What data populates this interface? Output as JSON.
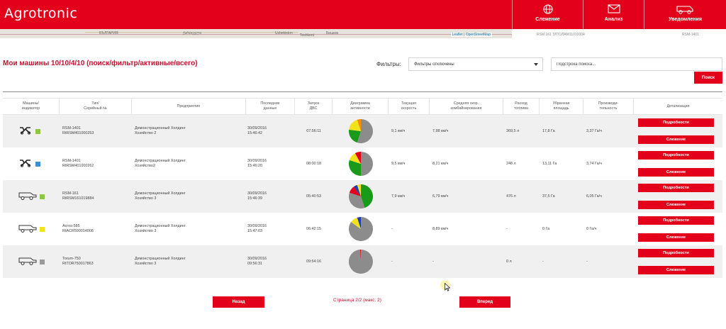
{
  "app": {
    "logo": "Agrotronic",
    "nav": [
      {
        "label": "Слежение",
        "icon": "globe-icon"
      },
      {
        "label": "Анализ",
        "icon": "mail-icon"
      },
      {
        "label": "Уведомления",
        "icon": "combine-icon"
      }
    ]
  },
  "map": {
    "cities": [
      "БЪЛГАРИЯ",
      "ქართველი",
      "Uzbekiston",
      "Toshkent",
      "Бишкек"
    ],
    "attribution_leaflet": "Leaflet",
    "attribution_osm": "OpenStreetMap",
    "right_strip_1": "RSM 161 ЗЛТОЛАМ11010004",
    "right_strip_2": "RSM-1401"
  },
  "page": {
    "title": "Мои машины 10/10/4/10 (поиск/фильтр/активные/всего)",
    "filters_label": "Фильтры:",
    "filter_value": "Фильтры отключены",
    "search_placeholder": "Подстрока поиска...",
    "search_button": "Поиск"
  },
  "table": {
    "headers": [
      [
        "Машины/",
        "индикатор"
      ],
      [
        "Тип/",
        "Серийный №"
      ],
      [
        "Предприятие"
      ],
      [
        "Последние",
        "данные"
      ],
      [
        "Запуск",
        "ДВС"
      ],
      [
        "Диаграмма",
        "активности"
      ],
      [
        "Текущая",
        "скорость"
      ],
      [
        "Средняя скор.",
        "комбайнирования"
      ],
      [
        "Расход",
        "топлива"
      ],
      [
        "Убранная",
        "площадь"
      ],
      [
        "Производи-",
        "тельность"
      ],
      [
        "Детализация"
      ]
    ],
    "details_label": "Подробности",
    "tracking_label": "Слежение",
    "rows": [
      {
        "machine_icon": "harvester-icon",
        "indicator_color": "#8dc63f",
        "type": "RSM-1401",
        "serial": "RtRSM401000253",
        "company_1": "Демонстрационный Холдинг",
        "company_2": "Хозяйство 2",
        "date": "30/09/2016",
        "time": "15:46:42",
        "engine": "07:56:11",
        "activity": [
          {
            "value": 0.55,
            "color": "#8c8c8c"
          },
          {
            "value": 0.22,
            "color": "#1a9a1a"
          },
          {
            "value": 0.18,
            "color": "#f2e21b"
          },
          {
            "value": 0.05,
            "color": "#ff8c00"
          }
        ],
        "speed": "9,1 км/ч",
        "avg_speed": "7,98 км/ч",
        "fuel": "369,5 л",
        "area": "17,8 Га",
        "productivity": "3,37 Га/ч"
      },
      {
        "machine_icon": "harvester-icon",
        "indicator_color": "#3a8fd6",
        "type": "RSM-1401",
        "serial": "RtRSM401000262",
        "company_1": "Демонстрационный Холдинг",
        "company_2": "Хозяйство2",
        "date": "30/09/2016",
        "time": "15:46:20",
        "engine": "08:00:18",
        "activity": [
          {
            "value": 0.5,
            "color": "#8c8c8c"
          },
          {
            "value": 0.3,
            "color": "#1a9a1a"
          },
          {
            "value": 0.12,
            "color": "#f2e21b"
          },
          {
            "value": 0.08,
            "color": "#e2001a"
          }
        ],
        "speed": "9,5 км/ч",
        "avg_speed": "8,21 км/ч",
        "fuel": "248 л",
        "area": "13,11 Га",
        "productivity": "3,74 Га/ч"
      },
      {
        "machine_icon": "combine-icon",
        "indicator_color": "#8dc63f",
        "type": "RSM-161",
        "serial": "RtRSM161019884",
        "company_1": "Демонстрационный Холдинг",
        "company_2": "Хозяйство 3",
        "date": "30/09/2016",
        "time": "15:46:39",
        "engine": "05:40:53",
        "activity": [
          {
            "value": 0.45,
            "color": "#1a9a1a"
          },
          {
            "value": 0.35,
            "color": "#8c8c8c"
          },
          {
            "value": 0.1,
            "color": "#e2001a"
          },
          {
            "value": 0.05,
            "color": "#1a3fb0"
          },
          {
            "value": 0.05,
            "color": "#f2e21b"
          }
        ],
        "speed": "7,9 км/ч",
        "avg_speed": "6,79 км/ч",
        "fuel": "476 л",
        "area": "37,5 Га",
        "productivity": "6,05 Га/ч"
      },
      {
        "machine_icon": "combine-icon",
        "indicator_color": "#f2e21b",
        "type": "Acros-585",
        "serial": "RtACR590014008",
        "company_1": "Демонстрационный Холдинг",
        "company_2": "Хозяйство 3",
        "date": "30/09/2016",
        "time": "15:47:03",
        "engine": "06:42:15",
        "activity": [
          {
            "value": 0.85,
            "color": "#8c8c8c"
          },
          {
            "value": 0.1,
            "color": "#f2e21b"
          },
          {
            "value": 0.05,
            "color": "#1a3fb0"
          }
        ],
        "speed": "-",
        "avg_speed": "8,89 км/ч",
        "fuel": "-",
        "area": "0 Га",
        "productivity": "0 Га/ч"
      },
      {
        "machine_icon": "combine-icon",
        "indicator_color": "#999999",
        "type": "Torum-750",
        "serial": "RtTOR750017863",
        "company_1": "Демонстрационный Холдинг",
        "company_2": "Хозяйство 3",
        "date": "30/09/2016",
        "time": "09:56:31",
        "engine": "09:54:16",
        "activity": [
          {
            "value": 0.99,
            "color": "#8c8c8c"
          },
          {
            "value": 0.01,
            "color": "#e2001a"
          }
        ],
        "speed": "-",
        "avg_speed": "-",
        "fuel": "0 л",
        "area": "-",
        "productivity": "-"
      }
    ]
  },
  "pagination": {
    "prev": "Назад",
    "info": "Страница 2/2 (макс: 2)",
    "next": "Вперед"
  }
}
